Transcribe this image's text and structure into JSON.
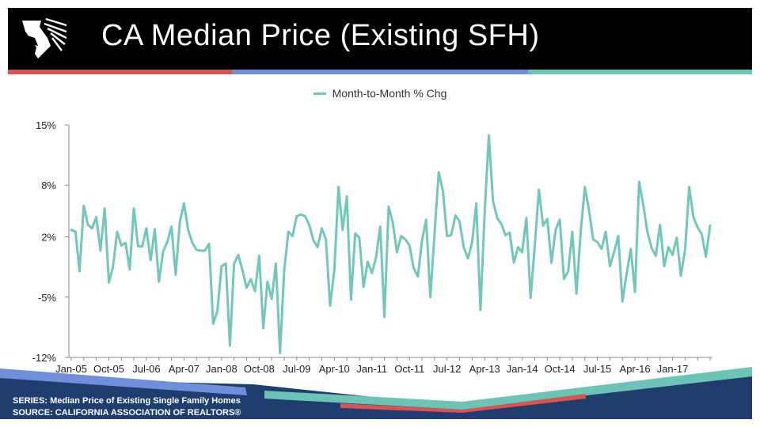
{
  "header": {
    "title": "CA Median Price (Existing SFH)",
    "logo_icon": "california-realtors-logo-icon",
    "colors": {
      "background": "#000000",
      "rule_red": "#d9534f",
      "rule_blue": "#6f8fdc",
      "rule_teal": "#6cc4b6"
    }
  },
  "footer": {
    "series_line": "SERIES: Median Price of Existing Single Family Homes",
    "source_line": "SOURCE:  CALIFORNIA ASSOCIATION OF REALTORS®",
    "colors": {
      "navy": "#1f3d6e",
      "blue": "#6f8fdc",
      "teal": "#6cc4b6",
      "red": "#d9534f"
    }
  },
  "chart_data": {
    "type": "line",
    "title": "",
    "xlabel": "",
    "ylabel": "",
    "legend_position": "top-center",
    "grid": false,
    "line_color": "#72c7bb",
    "ylim": [
      -12,
      15
    ],
    "y_ticks": [
      "15%",
      "8%",
      "2%",
      "-5%",
      "-12%"
    ],
    "y_tick_values": [
      15,
      8,
      2,
      -5,
      -12
    ],
    "x_ticks": [
      "Jan-05",
      "Oct-05",
      "Jul-06",
      "Apr-07",
      "Jan-08",
      "Oct-08",
      "Jul-09",
      "Apr-10",
      "Jan-11",
      "Oct-11",
      "Jul-12",
      "Apr-13",
      "Jan-14",
      "Oct-14",
      "Jul-15",
      "Apr-16",
      "Jan-17"
    ],
    "x_tick_index": [
      0,
      9,
      18,
      27,
      36,
      45,
      54,
      63,
      72,
      81,
      90,
      99,
      108,
      117,
      126,
      135,
      144
    ],
    "x_start": "Jan-05",
    "x_end": "Jul-17",
    "series": [
      {
        "name": "Month-to-Month % Chg",
        "values": [
          2.8,
          2.6,
          -2.0,
          5.6,
          3.4,
          3.0,
          4.3,
          0.4,
          5.3,
          -3.3,
          -1.5,
          2.6,
          1.0,
          1.3,
          -1.8,
          5.3,
          0.9,
          0.9,
          3.0,
          -0.7,
          2.9,
          -3.2,
          0.3,
          1.4,
          3.2,
          -2.4,
          3.7,
          5.9,
          2.8,
          1.3,
          0.5,
          0.4,
          0.4,
          1.2,
          -8.1,
          -6.6,
          -1.4,
          -1.1,
          -10.6,
          -1.1,
          -0.1,
          -1.9,
          -3.9,
          -2.9,
          -4.3,
          -0.2,
          -8.6,
          -3.2,
          -5.2,
          -1.1,
          -11.5,
          -1.9,
          2.6,
          2.1,
          4.4,
          4.6,
          4.4,
          3.4,
          1.6,
          0.8,
          3.0,
          1.7,
          -6.0,
          -1.9,
          7.8,
          2.8,
          6.7,
          -5.3,
          2.4,
          1.9,
          -3.8,
          -0.9,
          -2.2,
          -0.4,
          3.2,
          -7.3,
          5.5,
          3.7,
          0.2,
          2.1,
          1.7,
          1.0,
          -1.6,
          -2.6,
          1.6,
          4.0,
          -5.0,
          2.4,
          9.5,
          7.4,
          2.1,
          2.2,
          4.5,
          3.8,
          0.8,
          -0.5,
          1.4,
          5.9,
          -6.5,
          4.8,
          13.8,
          6.2,
          4.2,
          3.5,
          2.2,
          2.5,
          -1.0,
          0.8,
          0.2,
          4.2,
          -5.1,
          0.9,
          7.5,
          3.3,
          4.1,
          -1.0,
          2.8,
          4.0,
          -2.9,
          -2.0,
          2.6,
          -4.6,
          2.6,
          7.8,
          5.1,
          1.7,
          1.4,
          0.6,
          2.6,
          -1.4,
          0.2,
          2.1,
          -5.5,
          -2.3,
          0.6,
          -4.4,
          8.4,
          5.7,
          2.5,
          0.7,
          -0.2,
          3.4,
          -1.4,
          0.8,
          -0.1,
          1.9,
          -2.5,
          0.5,
          7.8,
          4.3,
          3.1,
          2.3,
          -0.3,
          3.3
        ]
      }
    ]
  }
}
